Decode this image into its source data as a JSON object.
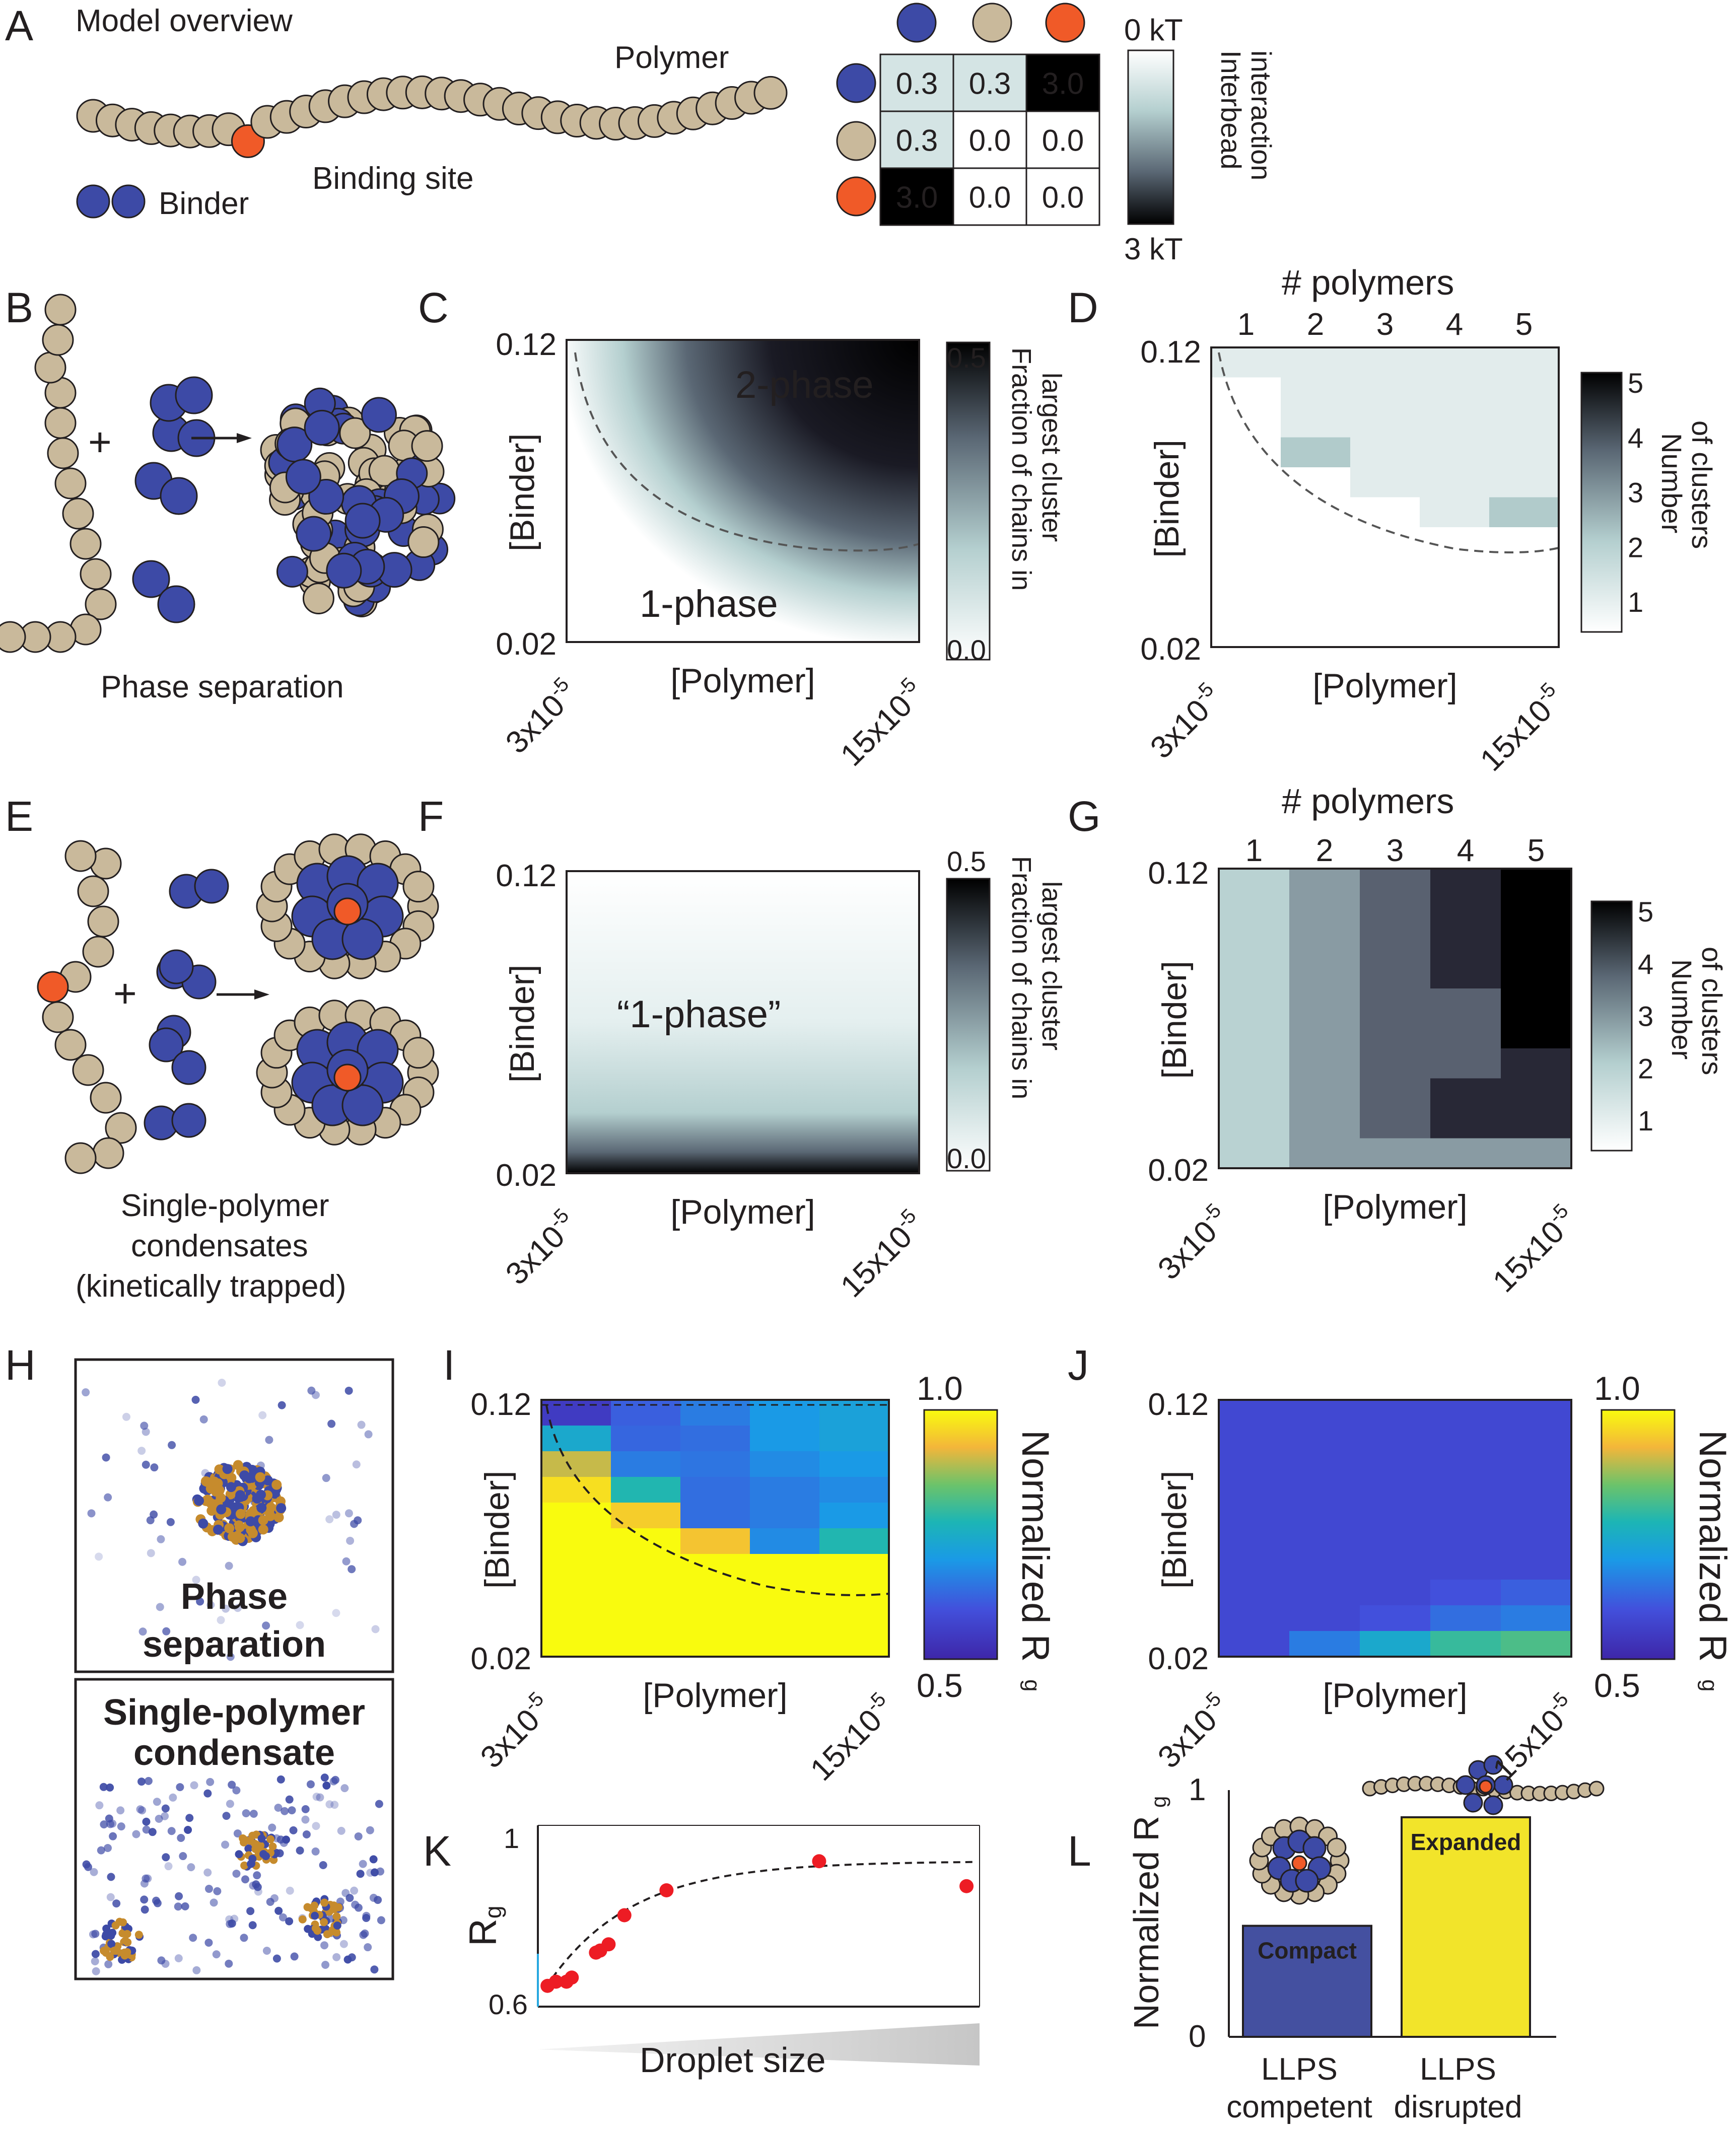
{
  "colors": {
    "binder": "#3d4aa6",
    "polymer": "#c9b99b",
    "site": "#f05a28",
    "line": "#231f20",
    "yellow_text": "#f2e500",
    "red_text": "#e8262a",
    "green_text": "#1a7a3a",
    "brown_text": "#d2723c",
    "poly_text": "#b6a78c"
  },
  "panels": {
    "A": {
      "letter": "A",
      "title": "Model overview",
      "polymer_label": "Polymer",
      "binding_site_label": "Binding site",
      "binder_label": "Binder",
      "matrix": [
        [
          "0.3",
          "0.3",
          "3.0"
        ],
        [
          "0.3",
          "0.0",
          "0.0"
        ],
        [
          "3.0",
          "0.0",
          "0.0"
        ]
      ],
      "matrix_values": [
        [
          0.3,
          0.3,
          3.0
        ],
        [
          0.3,
          0.0,
          0.0
        ],
        [
          3.0,
          0.0,
          0.0
        ]
      ],
      "colorbar_top": "0 kT",
      "colorbar_bottom": "3 kT",
      "colorbar_label_1": "Interbead",
      "colorbar_label_2": "interaction"
    },
    "B": {
      "letter": "B",
      "caption": "Phase separation",
      "plus": "+"
    },
    "C": {
      "letter": "C",
      "label_2phase": "2-phase",
      "label_1phase": "1-phase",
      "cbar_max": "0.5",
      "cbar_min": "0.0",
      "cbar_label_1": "Fraction of chains in",
      "cbar_label_2": "largest cluster"
    },
    "D": {
      "letter": "D",
      "top_title": "# polymers",
      "top_ticks": [
        "1",
        "2",
        "3",
        "4",
        "5"
      ],
      "cbar_ticks": [
        "5",
        "4",
        "3",
        "2",
        "1"
      ],
      "cbar_label_1": "Number",
      "cbar_label_2": "of clusters"
    },
    "E": {
      "letter": "E",
      "caption_1": "Single-polymer",
      "caption_2": "condensates",
      "caption_3": "(kinetically trapped)",
      "plus": "+"
    },
    "F": {
      "letter": "F",
      "label_1phase": "“1-phase”",
      "cbar_max": "0.5",
      "cbar_min": "0.0",
      "cbar_label_1": "Fraction of chains in",
      "cbar_label_2": "largest cluster"
    },
    "G": {
      "letter": "G",
      "top_title": "# polymers",
      "top_ticks": [
        "1",
        "2",
        "3",
        "4",
        "5"
      ],
      "cbar_ticks": [
        "5",
        "4",
        "3",
        "2",
        "1"
      ],
      "cbar_label_1": "Number",
      "cbar_label_2": "of clusters"
    },
    "H": {
      "letter": "H",
      "top_label_1": "Phase",
      "top_label_2": "separation",
      "bottom_label_1": "Single-polymer",
      "bottom_label_2": "condensate"
    },
    "I": {
      "letter": "I",
      "cbar_max": "1.0",
      "cbar_min": "0.5",
      "cbar_label": "Normalized R",
      "cbar_sub": "g"
    },
    "J": {
      "letter": "J",
      "cbar_max": "1.0",
      "cbar_min": "0.5",
      "cbar_label": "Normalized R",
      "cbar_sub": "g"
    },
    "K": {
      "letter": "K",
      "ylabel": "R",
      "ylabel_sub": "g",
      "xlabel": "Droplet size",
      "y_top": "1",
      "y_bottom": "0.6"
    },
    "L": {
      "letter": "L",
      "ylabel": "Normalized R",
      "ylabel_sub": "g",
      "y_top": "1",
      "y_bottom": "0",
      "bar1_label": "Compact",
      "bar2_label": "Expanded",
      "cat1_line1": "LLPS",
      "cat1_line2": "competent",
      "cat2_line1": "LLPS",
      "cat2_line2": "disrupted"
    }
  },
  "axes": {
    "ylabel": "[Binder]",
    "xlabel": "[Polymer]",
    "y_top": "0.12",
    "y_bottom": "0.02",
    "x_left": "3x10",
    "x_left_exp": "-5",
    "x_right": "15x10",
    "x_right_exp": "-5"
  },
  "chart_data": [
    {
      "panel": "C",
      "type": "heatmap",
      "xlabel": "[Polymer]",
      "ylabel": "[Binder]",
      "xlim": [
        3e-05,
        0.00015
      ],
      "ylim": [
        0.02,
        0.12
      ],
      "colorbar": [
        0.0,
        0.5
      ],
      "annotations": [
        "2-phase",
        "1-phase"
      ],
      "description_values": {
        "region_2phase_max": 0.5,
        "region_1phase": 0.0
      }
    },
    {
      "panel": "D",
      "type": "heatmap",
      "xlabel": "[Polymer]",
      "ylabel": "[Binder]",
      "x_categories": [
        "1",
        "2",
        "3",
        "4",
        "5"
      ],
      "colorbar": [
        1,
        5
      ],
      "rows_top_to_bottom": [
        [
          1,
          1,
          1,
          1,
          1
        ],
        [
          0,
          1,
          1,
          1,
          1
        ],
        [
          0,
          1,
          1,
          1,
          1
        ],
        [
          0,
          2,
          1,
          1,
          1
        ],
        [
          0,
          0,
          1,
          1,
          1
        ],
        [
          0,
          0,
          0,
          1,
          2
        ],
        [
          0,
          0,
          0,
          0,
          0
        ],
        [
          0,
          0,
          0,
          0,
          0
        ],
        [
          0,
          0,
          0,
          0,
          0
        ],
        [
          0,
          0,
          0,
          0,
          0
        ]
      ]
    },
    {
      "panel": "F",
      "type": "heatmap",
      "xlabel": "[Polymer]",
      "ylabel": "[Binder]",
      "xlim": [
        3e-05,
        0.00015
      ],
      "ylim": [
        0.02,
        0.12
      ],
      "colorbar": [
        0.0,
        0.5
      ],
      "annotations": [
        "“1-phase”"
      ]
    },
    {
      "panel": "G",
      "type": "heatmap",
      "xlabel": "[Polymer]",
      "ylabel": "[Binder]",
      "x_categories": [
        "1",
        "2",
        "3",
        "4",
        "5"
      ],
      "colorbar": [
        1,
        5
      ],
      "rows_top_to_bottom": [
        [
          1,
          2,
          3,
          4,
          5
        ],
        [
          1,
          2,
          3,
          4,
          5
        ],
        [
          1,
          2,
          3,
          4,
          5
        ],
        [
          1,
          2,
          3,
          4,
          5
        ],
        [
          1,
          2,
          3,
          3,
          5
        ],
        [
          1,
          2,
          3,
          3,
          5
        ],
        [
          1,
          2,
          3,
          3,
          4
        ],
        [
          1,
          2,
          3,
          4,
          4
        ],
        [
          1,
          2,
          3,
          4,
          4
        ],
        [
          1,
          2,
          2,
          2,
          2
        ]
      ]
    },
    {
      "panel": "I",
      "type": "heatmap",
      "xlabel": "[Polymer]",
      "ylabel": "[Binder]",
      "colorbar": [
        0.5,
        1.0
      ],
      "rows_top_to_bottom": [
        [
          0.55,
          0.62,
          0.66,
          0.7,
          0.72
        ],
        [
          0.74,
          0.63,
          0.64,
          0.7,
          0.72
        ],
        [
          0.9,
          0.66,
          0.65,
          0.68,
          0.7
        ],
        [
          0.97,
          0.78,
          0.64,
          0.66,
          0.68
        ],
        [
          1.0,
          0.95,
          0.64,
          0.66,
          0.7
        ],
        [
          1.0,
          1.0,
          0.94,
          0.68,
          0.78
        ],
        [
          1.0,
          1.0,
          1.0,
          1.0,
          1.0
        ],
        [
          1.0,
          1.0,
          1.0,
          1.0,
          1.0
        ],
        [
          1.0,
          1.0,
          1.0,
          1.0,
          1.0
        ],
        [
          1.0,
          1.0,
          1.0,
          1.0,
          1.0
        ]
      ]
    },
    {
      "panel": "J",
      "type": "heatmap",
      "xlabel": "[Polymer]",
      "ylabel": "[Binder]",
      "colorbar": [
        0.5,
        1.0
      ],
      "rows_top_to_bottom": [
        [
          0.58,
          0.58,
          0.58,
          0.58,
          0.58
        ],
        [
          0.58,
          0.58,
          0.58,
          0.58,
          0.58
        ],
        [
          0.58,
          0.58,
          0.58,
          0.58,
          0.58
        ],
        [
          0.58,
          0.58,
          0.58,
          0.58,
          0.58
        ],
        [
          0.58,
          0.58,
          0.58,
          0.58,
          0.58
        ],
        [
          0.58,
          0.58,
          0.58,
          0.58,
          0.58
        ],
        [
          0.58,
          0.58,
          0.58,
          0.58,
          0.58
        ],
        [
          0.58,
          0.58,
          0.58,
          0.6,
          0.62
        ],
        [
          0.58,
          0.58,
          0.6,
          0.64,
          0.66
        ],
        [
          0.58,
          0.66,
          0.74,
          0.8,
          0.82
        ]
      ]
    },
    {
      "panel": "K",
      "type": "scatter",
      "xlabel": "Droplet size",
      "ylabel": "Rg",
      "ylim": [
        0.6,
        1.0
      ],
      "x": [
        0.2,
        1.0,
        2.0,
        2.5,
        4.8,
        5.2,
        6.0,
        7.5,
        11.5,
        26.0,
        40.0
      ],
      "y": [
        0.65,
        0.66,
        0.66,
        0.67,
        0.73,
        0.735,
        0.75,
        0.82,
        0.88,
        0.95,
        0.89
      ],
      "fit": "saturating curve"
    },
    {
      "panel": "L",
      "type": "bar",
      "categories": [
        "LLPS competent",
        "LLPS disrupted"
      ],
      "values": [
        0.45,
        0.89
      ],
      "ylim": [
        0,
        1
      ]
    }
  ]
}
